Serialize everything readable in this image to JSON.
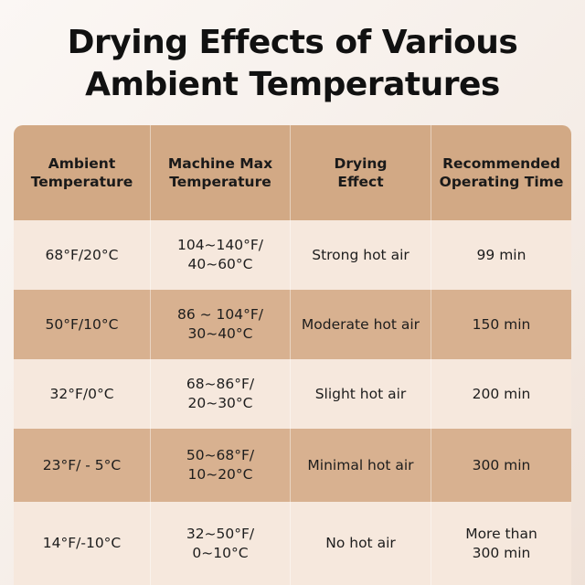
{
  "title": {
    "line1": "Drying Effects of Various",
    "line2": "Ambient Temperatures"
  },
  "table": {
    "headers": [
      [
        "Ambient",
        "Temperature"
      ],
      [
        "Machine Max",
        "Temperature"
      ],
      [
        "Drying",
        "Effect"
      ],
      [
        "Recommended",
        "Operating Time"
      ]
    ],
    "rows": [
      [
        [
          "68°F/20°C"
        ],
        [
          "104~140°F/",
          "40~60°C"
        ],
        [
          "Strong hot air"
        ],
        [
          "99 min"
        ]
      ],
      [
        [
          "50°F/10°C"
        ],
        [
          "86 ~ 104°F/",
          "30~40°C"
        ],
        [
          "Moderate hot air"
        ],
        [
          "150 min"
        ]
      ],
      [
        [
          "32°F/0°C"
        ],
        [
          "68~86°F/",
          "20~30°C"
        ],
        [
          "Slight hot air"
        ],
        [
          "200 min"
        ]
      ],
      [
        [
          "23°F/ - 5°C"
        ],
        [
          "50~68°F/",
          "10~20°C"
        ],
        [
          "Minimal hot air"
        ],
        [
          "300 min"
        ]
      ],
      [
        [
          "14°F/-10°C"
        ],
        [
          "32~50°F/",
          "0~10°C"
        ],
        [
          "No hot air"
        ],
        [
          "More than",
          "300 min"
        ]
      ]
    ]
  },
  "colors": {
    "header_bg": "#d2a985",
    "row_light": "#f6e8dd",
    "row_dark": "#d8b190"
  }
}
